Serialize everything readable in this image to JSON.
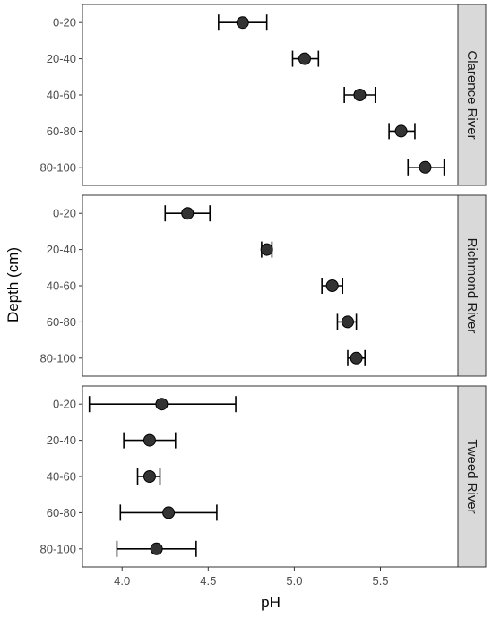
{
  "chart_data": {
    "type": "scatter",
    "subtype": "faceted point estimates with error bars",
    "xlabel": "pH",
    "ylabel": "Depth (cm)",
    "xlim": [
      3.77,
      5.95
    ],
    "x_ticks": [
      4.0,
      4.5,
      5.0,
      5.5
    ],
    "x_tick_labels": [
      "4.0",
      "4.5",
      "5.0",
      "5.5"
    ],
    "categories": [
      "0-20",
      "20-40",
      "40-60",
      "60-80",
      "80-100"
    ],
    "grid": false,
    "point_color": "#333333",
    "facets": [
      {
        "name": "Clarence River",
        "points": [
          {
            "depth": "0-20",
            "mean": 4.7,
            "lower": 4.56,
            "upper": 4.84
          },
          {
            "depth": "20-40",
            "mean": 5.06,
            "lower": 4.99,
            "upper": 5.14
          },
          {
            "depth": "40-60",
            "mean": 5.38,
            "lower": 5.29,
            "upper": 5.47
          },
          {
            "depth": "60-80",
            "mean": 5.62,
            "lower": 5.55,
            "upper": 5.7
          },
          {
            "depth": "80-100",
            "mean": 5.76,
            "lower": 5.66,
            "upper": 5.87
          }
        ]
      },
      {
        "name": "Richmond River",
        "points": [
          {
            "depth": "0-20",
            "mean": 4.38,
            "lower": 4.25,
            "upper": 4.51
          },
          {
            "depth": "20-40",
            "mean": 4.84,
            "lower": 4.81,
            "upper": 4.87
          },
          {
            "depth": "40-60",
            "mean": 5.22,
            "lower": 5.16,
            "upper": 5.28
          },
          {
            "depth": "60-80",
            "mean": 5.31,
            "lower": 5.25,
            "upper": 5.36
          },
          {
            "depth": "80-100",
            "mean": 5.36,
            "lower": 5.31,
            "upper": 5.41
          }
        ]
      },
      {
        "name": "Tweed River",
        "points": [
          {
            "depth": "0-20",
            "mean": 4.23,
            "lower": 3.81,
            "upper": 4.66
          },
          {
            "depth": "20-40",
            "mean": 4.16,
            "lower": 4.01,
            "upper": 4.31
          },
          {
            "depth": "40-60",
            "mean": 4.16,
            "lower": 4.09,
            "upper": 4.22
          },
          {
            "depth": "60-80",
            "mean": 4.27,
            "lower": 3.99,
            "upper": 4.55
          },
          {
            "depth": "80-100",
            "mean": 4.2,
            "lower": 3.97,
            "upper": 4.43
          }
        ]
      }
    ]
  }
}
